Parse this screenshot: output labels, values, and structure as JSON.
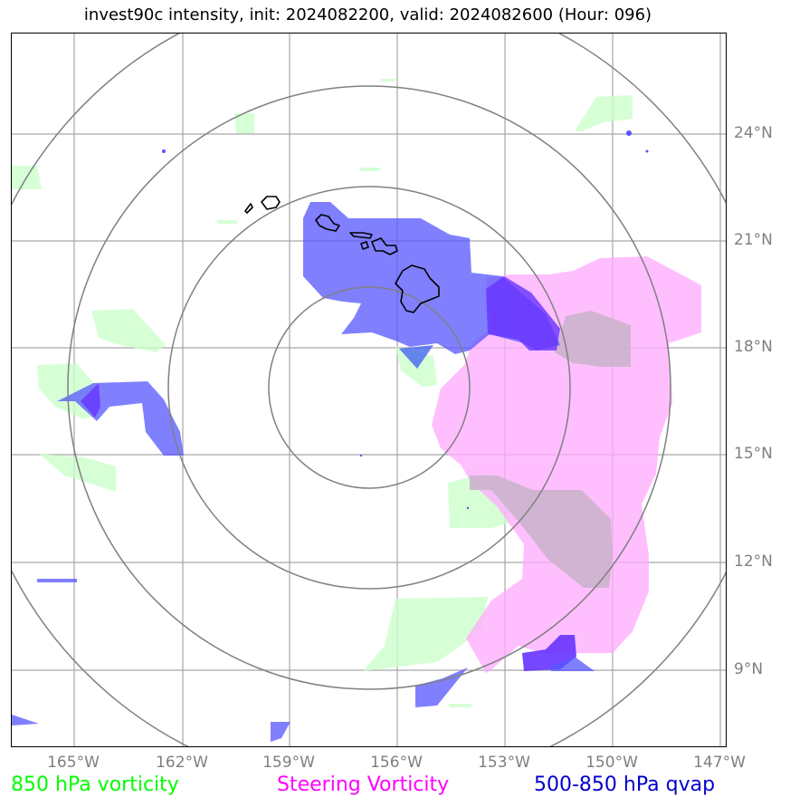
{
  "title": "invest90c intensity, init: 2024082200, valid: 2024082600 (Hour: 096)",
  "lat_labels": [
    "24°N",
    "21°N",
    "18°N",
    "15°N",
    "12°N",
    "9°N"
  ],
  "lon_labels": [
    "165°W",
    "162°W",
    "159°W",
    "156°W",
    "153°W",
    "150°W",
    "147°W"
  ],
  "legend": [
    {
      "label": "850 hPa vorticity",
      "color": "#00ff00"
    },
    {
      "label": "Steering Vorticity",
      "color": "#ff00ff"
    },
    {
      "label": "500-850 hPa qvap",
      "color": "#0000cc"
    }
  ],
  "colors": {
    "vorticity_fill": "#ccffcc",
    "steering_fill": "#ffaaff",
    "qvap_fill": "#5555ff",
    "qvap_dark_fill": "#6633ff",
    "overlap_fill": "#ccb3cc",
    "grid": "#a6a6a6",
    "range_rings": "#808080",
    "coastline": "#000000"
  },
  "range_rings": {
    "center_lon": -157.0,
    "center_lat": 16.9,
    "count": 4
  }
}
